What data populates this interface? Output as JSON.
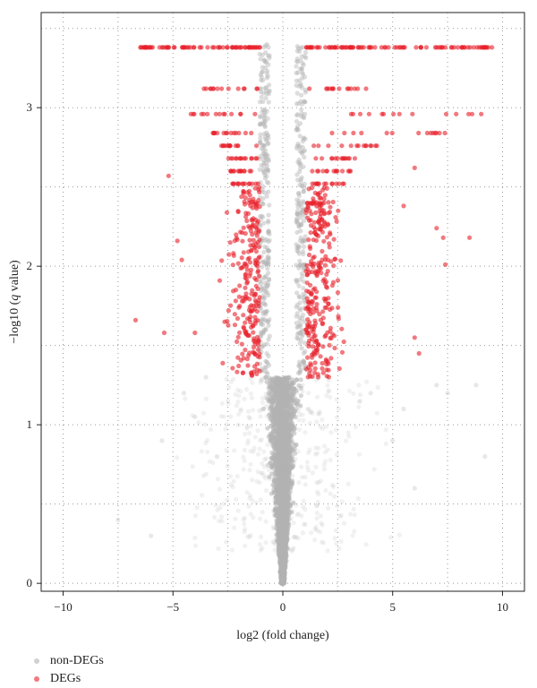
{
  "chart_data": {
    "type": "scatter",
    "title": "",
    "xlabel": "log2 (fold change)",
    "ylabel_prefix": "−log10 (",
    "ylabel_italic": "q",
    "ylabel_suffix": " value)",
    "xlim": [
      -11,
      11
    ],
    "ylim": [
      -0.05,
      3.6
    ],
    "xticks": [
      -10,
      -5,
      0,
      5,
      10
    ],
    "yticks": [
      0,
      1,
      2,
      3
    ],
    "grid": true,
    "legend_position": "bottom-left",
    "colors": {
      "non_degs": "#b3b3b3",
      "degs": "#e8202a"
    },
    "series": [
      {
        "name": "non-DEGs",
        "description_points": "dense V-shaped cloud centered at x=0, y from 0 to about 1.3, widening with y; plus thin grey columns up to about 3.4 along the DEG rows",
        "envelope": [
          [
            -0.1,
            0.0
          ],
          [
            -0.5,
            0.5
          ],
          [
            -0.9,
            1.0
          ],
          [
            -1.1,
            1.3
          ],
          [
            1.1,
            1.3
          ],
          [
            0.9,
            1.0
          ],
          [
            0.5,
            0.5
          ],
          [
            0.1,
            0.0
          ]
        ],
        "outliers": [
          [
            -7.5,
            0.4
          ],
          [
            -6.0,
            0.3
          ],
          [
            -5.5,
            0.9
          ],
          [
            -4.5,
            1.2
          ],
          [
            -4.0,
            1.05
          ],
          [
            -3.5,
            1.3
          ],
          [
            -3.0,
            0.8
          ],
          [
            4.0,
            1.2
          ],
          [
            5.0,
            0.9
          ],
          [
            5.5,
            1.1
          ],
          [
            6.0,
            0.6
          ],
          [
            7.0,
            1.25
          ],
          [
            7.5,
            1.2
          ],
          [
            8.8,
            1.25
          ],
          [
            9.2,
            0.8
          ]
        ]
      },
      {
        "name": "DEGs",
        "description_points": "red points for |log2FC| > 1 and -log10(q) > 1.3, forming horizontal bands at discrete q values",
        "band_rows": [
          {
            "y": 3.38,
            "x_left": [
              -6.6,
              -1.0
            ],
            "x_right": [
              1.0,
              9.6
            ]
          },
          {
            "y": 3.12,
            "x_left": [
              -3.7,
              -1.0
            ],
            "x_right": [
              1.0,
              3.9
            ]
          },
          {
            "y": 2.96,
            "x_left": [
              -4.3,
              -1.0
            ],
            "x_right": [
              1.0,
              9.2
            ]
          },
          {
            "y": 2.84,
            "x_left": [
              -3.2,
              -1.0
            ],
            "x_right": [
              1.0,
              7.5
            ]
          },
          {
            "y": 2.76,
            "x_left": [
              -2.8,
              -1.0
            ],
            "x_right": [
              1.0,
              4.4
            ]
          },
          {
            "y": 2.68,
            "x_left": [
              -2.5,
              -1.0
            ],
            "x_right": [
              1.0,
              3.3
            ]
          },
          {
            "y": 2.6,
            "x_left": [
              -2.4,
              -1.0
            ],
            "x_right": [
              1.0,
              3.1
            ]
          },
          {
            "y": 2.52,
            "x_left": [
              -2.3,
              -1.0
            ],
            "x_right": [
              1.0,
              2.8
            ]
          }
        ],
        "scatter_region": {
          "y_range": [
            1.3,
            2.5
          ],
          "x_left": [
            -4.2,
            -1.0
          ],
          "x_right": [
            1.0,
            6.0
          ]
        },
        "outliers": [
          [
            -6.7,
            1.66
          ],
          [
            -5.2,
            2.57
          ],
          [
            -4.8,
            2.16
          ],
          [
            -4.6,
            2.04
          ],
          [
            -4.0,
            1.58
          ],
          [
            -5.4,
            1.58
          ],
          [
            6.0,
            1.55
          ],
          [
            6.2,
            1.45
          ],
          [
            7.0,
            2.24
          ],
          [
            7.3,
            2.18
          ],
          [
            8.5,
            2.18
          ],
          [
            7.4,
            2.01
          ],
          [
            6.0,
            2.62
          ],
          [
            5.5,
            2.38
          ]
        ]
      }
    ]
  }
}
